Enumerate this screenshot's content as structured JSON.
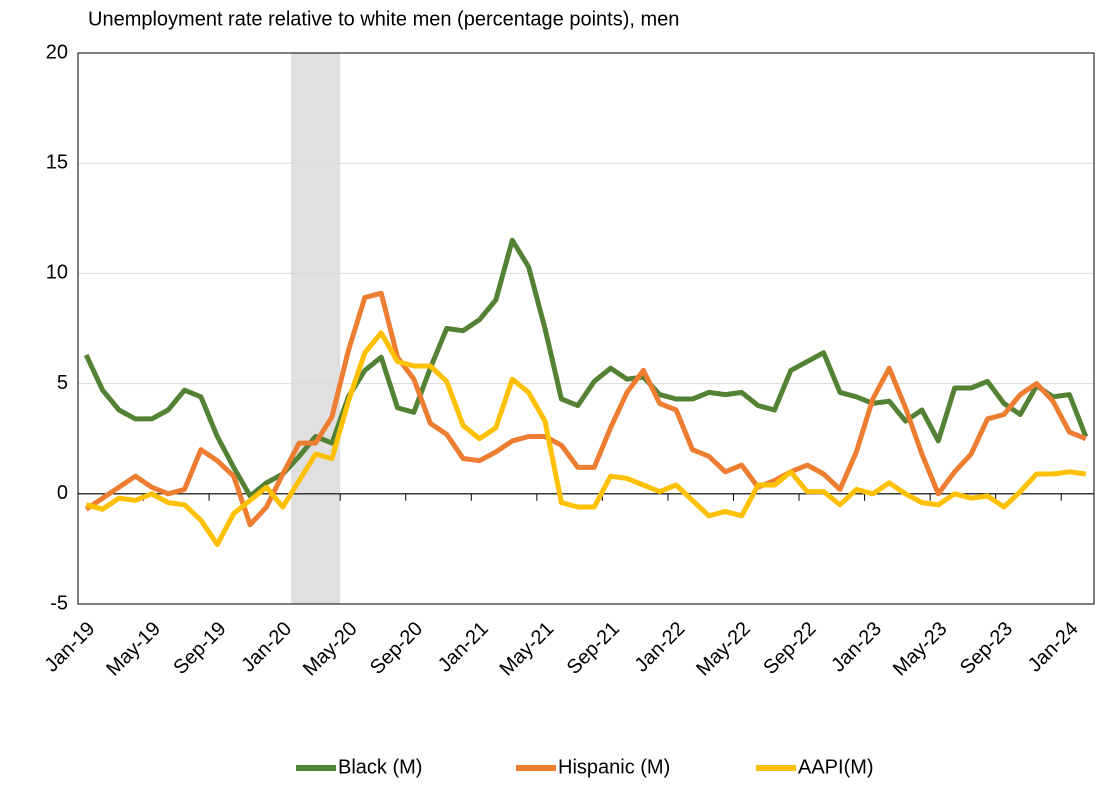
{
  "chart_data": {
    "type": "line",
    "title": "Unemployment rate relative to white men (percentage points), men",
    "categories": [
      "Jan-19",
      null,
      null,
      null,
      "May-19",
      null,
      null,
      null,
      "Sep-19",
      null,
      null,
      null,
      "Jan-20",
      null,
      null,
      null,
      "May-20",
      null,
      null,
      null,
      "Sep-20",
      null,
      null,
      null,
      "Jan-21",
      null,
      null,
      null,
      "May-21",
      null,
      null,
      null,
      "Sep-21",
      null,
      null,
      null,
      "Jan-22",
      null,
      null,
      null,
      "May-22",
      null,
      null,
      null,
      "Sep-22",
      null,
      null,
      null,
      "Jan-23",
      null,
      null,
      null,
      "May-23",
      null,
      null,
      null,
      "Sep-23",
      null,
      null,
      null,
      "Jan-24",
      null
    ],
    "series": [
      {
        "name": "Black (M)",
        "color": "#548235",
        "values": [
          6.3,
          4.7,
          3.8,
          3.4,
          3.4,
          3.8,
          4.7,
          4.4,
          2.6,
          1.2,
          -0.1,
          0.5,
          0.9,
          1.7,
          2.6,
          2.3,
          4.4,
          5.6,
          6.2,
          3.9,
          3.7,
          5.7,
          7.5,
          7.4,
          7.9,
          8.8,
          11.5,
          10.3,
          7.5,
          4.3,
          4.0,
          5.1,
          5.7,
          5.2,
          5.3,
          4.5,
          4.3,
          4.3,
          4.6,
          4.5,
          4.6,
          4.0,
          3.8,
          5.6,
          6.0,
          6.4,
          4.6,
          4.4,
          4.1,
          4.2,
          3.3,
          3.8,
          2.4,
          4.8,
          4.8,
          5.1,
          4.1,
          3.6,
          4.9,
          4.4,
          4.5,
          2.6
        ]
      },
      {
        "name": "Hispanic (M)",
        "color": "#ed7d31",
        "values": [
          -0.7,
          -0.2,
          0.3,
          0.8,
          0.3,
          0.0,
          0.2,
          2.0,
          1.5,
          0.8,
          -1.4,
          -0.6,
          0.9,
          2.3,
          2.3,
          3.5,
          6.5,
          8.9,
          9.1,
          6.2,
          5.2,
          3.2,
          2.7,
          1.6,
          1.5,
          1.9,
          2.4,
          2.6,
          2.6,
          2.2,
          1.2,
          1.2,
          3.0,
          4.6,
          5.6,
          4.1,
          3.8,
          2.0,
          1.7,
          1.0,
          1.3,
          0.3,
          0.6,
          1.0,
          1.3,
          0.9,
          0.2,
          1.9,
          4.3,
          5.7,
          3.9,
          1.8,
          0.0,
          1.0,
          1.8,
          3.4,
          3.6,
          4.5,
          5.0,
          4.2,
          2.8,
          2.5
        ]
      },
      {
        "name": "AAPI(M)",
        "color": "#ffc000",
        "values": [
          -0.5,
          -0.7,
          -0.2,
          -0.3,
          0.0,
          -0.4,
          -0.5,
          -1.2,
          -2.3,
          -0.9,
          -0.3,
          0.3,
          -0.6,
          0.6,
          1.8,
          1.6,
          4.2,
          6.4,
          7.3,
          6.0,
          5.8,
          5.8,
          5.1,
          3.1,
          2.5,
          3.0,
          5.2,
          4.6,
          3.3,
          -0.4,
          -0.6,
          -0.6,
          0.8,
          0.7,
          0.4,
          0.1,
          0.4,
          -0.3,
          -1.0,
          -0.8,
          -1.0,
          0.4,
          0.4,
          1.0,
          0.1,
          0.1,
          -0.5,
          0.2,
          0.0,
          0.5,
          0.0,
          -0.4,
          -0.5,
          0.0,
          -0.2,
          -0.1,
          -0.6,
          0.1,
          0.9,
          0.9,
          1.0,
          0.9
        ]
      }
    ],
    "shaded_range": [
      13,
      15
    ],
    "ylim": [
      -5,
      20
    ],
    "yticks": [
      -5,
      0,
      5,
      10,
      15,
      20
    ],
    "grid": true,
    "legend": "bottom"
  }
}
